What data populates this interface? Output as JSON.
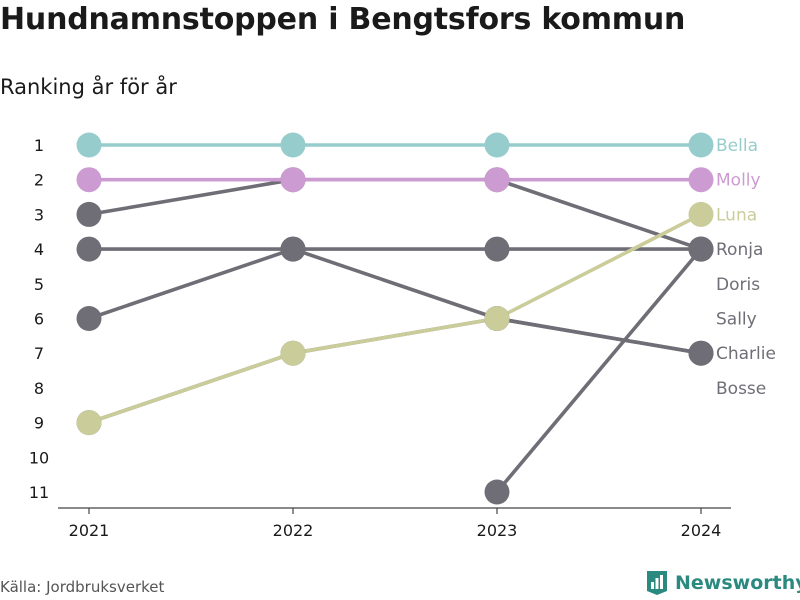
{
  "title": "Hundnamnstoppen i Bengtsfors kommun",
  "subtitle": "Ranking år för år",
  "source": "Källa: Jordbruksverket",
  "brand": {
    "name": "Newsworthy",
    "icon": "newsworthy-logo-icon",
    "color": "#2b8a80"
  },
  "chart_data": {
    "type": "line",
    "x": [
      "2021",
      "2022",
      "2023",
      "2024"
    ],
    "ylim": [
      1,
      11
    ],
    "y_ticks": [
      "1",
      "2",
      "3",
      "4",
      "5",
      "6",
      "7",
      "8",
      "9",
      "10",
      "11"
    ],
    "y_reversed": true,
    "grid": false,
    "colors": {
      "highlight": "#96cdcc",
      "gray": "#6f6e76"
    },
    "series": [
      {
        "name": "Bella",
        "color": "#96cdcc",
        "values": [
          1,
          1,
          1,
          1
        ]
      },
      {
        "name": "Molly",
        "color": "#cc9bd1",
        "values": [
          2,
          2,
          2,
          2
        ]
      },
      {
        "name": "Luna",
        "color": "#cacd9a",
        "values": [
          9,
          7,
          6,
          3
        ]
      },
      {
        "name": "Ronja",
        "color": "#6f6e76",
        "values": [
          4,
          4,
          4,
          4
        ]
      },
      {
        "name": "Doris",
        "color": "#6f6e76",
        "values": [
          null,
          null,
          11,
          4
        ]
      },
      {
        "name": "Charlie",
        "color": "#6f6e76",
        "values": [
          6,
          4,
          6,
          7
        ]
      },
      {
        "name": "Sally",
        "color": "#6f6e76",
        "values": [
          3,
          2,
          2,
          4
        ]
      },
      {
        "name": "Bosse",
        "color": "#6f6e76",
        "values": [
          9,
          7,
          6,
          7
        ]
      }
    ]
  }
}
